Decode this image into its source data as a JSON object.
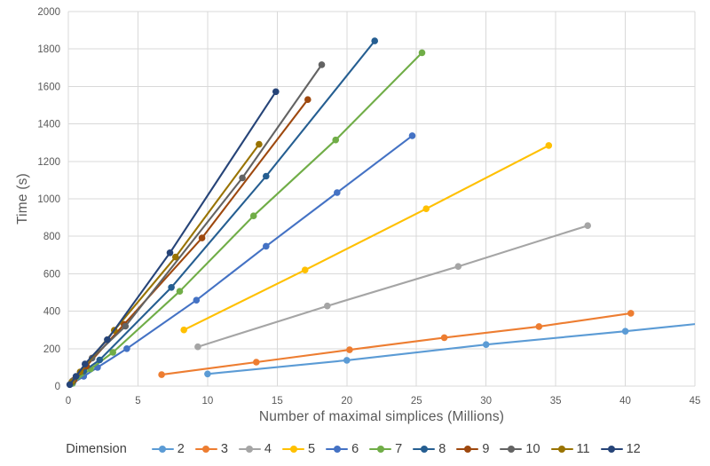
{
  "chart_data": {
    "type": "line",
    "title": "",
    "xlabel": "Number of maximal simplices (Millions)",
    "ylabel": "Time (s)",
    "legend_title": "Dimension",
    "legend_position": "bottom",
    "grid": true,
    "xlim": [
      0,
      45
    ],
    "ylim": [
      0,
      2000
    ],
    "x_ticks": [
      0,
      5,
      10,
      15,
      20,
      25,
      30,
      35,
      40,
      45
    ],
    "y_ticks": [
      0,
      200,
      400,
      600,
      800,
      1000,
      1200,
      1400,
      1600,
      1800,
      2000
    ],
    "gridline_color": "#D9D9D9",
    "tick_label_color": "#595959",
    "series": [
      {
        "name": "2",
        "color": "#5B9BD5",
        "points": [
          [
            10,
            65
          ],
          [
            20,
            138
          ],
          [
            30,
            222
          ],
          [
            40,
            293
          ],
          [
            46,
            339
          ]
        ],
        "clipped_at_right": true
      },
      {
        "name": "3",
        "color": "#ED7D31",
        "points": [
          [
            6.7,
            61
          ],
          [
            13.5,
            128
          ],
          [
            20.2,
            194
          ],
          [
            27,
            259
          ],
          [
            33.8,
            318
          ],
          [
            40.4,
            389
          ]
        ]
      },
      {
        "name": "4",
        "color": "#A5A5A5",
        "points": [
          [
            9.3,
            210
          ],
          [
            18.6,
            428
          ],
          [
            28,
            639
          ],
          [
            37.3,
            857
          ]
        ]
      },
      {
        "name": "5",
        "color": "#FFC000",
        "points": [
          [
            8.3,
            300
          ],
          [
            17,
            620
          ],
          [
            25.7,
            947
          ],
          [
            34.5,
            1285
          ]
        ]
      },
      {
        "name": "6",
        "color": "#4472C4",
        "points": [
          [
            0.3,
            14
          ],
          [
            1.1,
            52
          ],
          [
            2.1,
            100
          ],
          [
            4.2,
            200
          ],
          [
            9.2,
            459
          ],
          [
            14.2,
            747
          ],
          [
            19.3,
            1033
          ],
          [
            24.7,
            1337
          ]
        ]
      },
      {
        "name": "7",
        "color": "#70AD47",
        "points": [
          [
            0.3,
            15
          ],
          [
            1.6,
            92
          ],
          [
            3.2,
            180
          ],
          [
            8,
            506
          ],
          [
            13.3,
            909
          ],
          [
            19.2,
            1314
          ],
          [
            25.4,
            1780
          ]
        ]
      },
      {
        "name": "8",
        "color": "#255E91",
        "points": [
          [
            0.35,
            25
          ],
          [
            1.1,
            80
          ],
          [
            2.25,
            140
          ],
          [
            7.4,
            527
          ],
          [
            14.2,
            1121
          ],
          [
            22,
            1843
          ]
        ]
      },
      {
        "name": "9",
        "color": "#9E480E",
        "points": [
          [
            0.4,
            32
          ],
          [
            1.3,
            107
          ],
          [
            4,
            330
          ],
          [
            9.6,
            791
          ],
          [
            17.2,
            1530
          ]
        ]
      },
      {
        "name": "10",
        "color": "#636363",
        "points": [
          [
            0.3,
            27
          ],
          [
            1.7,
            150
          ],
          [
            4.1,
            320
          ],
          [
            12.5,
            1112
          ],
          [
            18.2,
            1716
          ]
        ]
      },
      {
        "name": "11",
        "color": "#997300",
        "points": [
          [
            0.25,
            22
          ],
          [
            0.85,
            76
          ],
          [
            3.3,
            298
          ],
          [
            7.7,
            689
          ],
          [
            13.7,
            1291
          ]
        ]
      },
      {
        "name": "12",
        "color": "#264478",
        "points": [
          [
            0.1,
            8
          ],
          [
            0.55,
            52
          ],
          [
            1.2,
            118
          ],
          [
            2.8,
            248
          ],
          [
            7.3,
            712
          ],
          [
            14.9,
            1572
          ]
        ]
      }
    ]
  }
}
